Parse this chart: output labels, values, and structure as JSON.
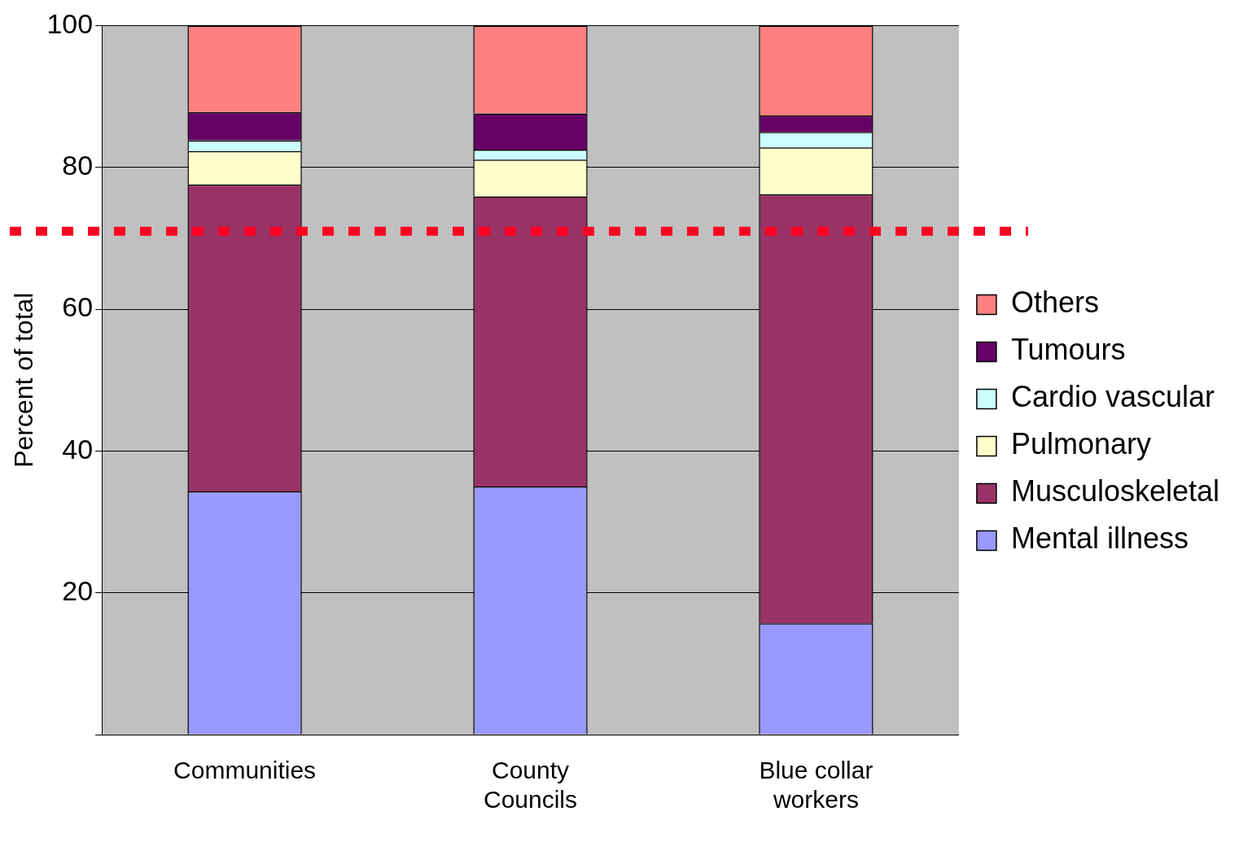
{
  "chart_data": {
    "type": "bar",
    "stacked": true,
    "ylabel": "Percent of total",
    "categories": [
      "Communities",
      "County Councils",
      "Blue collar workers"
    ],
    "series": [
      {
        "name": "Mental illness",
        "color": "#9999ff",
        "values": [
          34.3,
          35.0,
          15.7
        ]
      },
      {
        "name": "Musculoskeletal",
        "color": "#993366",
        "values": [
          43.3,
          40.9,
          60.5
        ]
      },
      {
        "name": "Pulmonary",
        "color": "#ffffcc",
        "values": [
          4.7,
          5.2,
          6.6
        ]
      },
      {
        "name": "Cardio vascular",
        "color": "#ccffff",
        "values": [
          1.5,
          1.4,
          2.2
        ]
      },
      {
        "name": "Tumours",
        "color": "#660066",
        "values": [
          4.0,
          5.1,
          2.3
        ]
      },
      {
        "name": "Others",
        "color": "#ff8080",
        "values": [
          12.2,
          12.4,
          12.7
        ]
      }
    ],
    "ylim": [
      0,
      100
    ],
    "yticks": [
      {
        "value": 0,
        "label": null
      },
      20,
      40,
      60,
      80,
      100
    ],
    "grid": "y",
    "legend": "right",
    "ref_lines": [
      {
        "axis": "y",
        "value": 71,
        "color": "#ff0022",
        "line_style": "dotted"
      }
    ]
  }
}
